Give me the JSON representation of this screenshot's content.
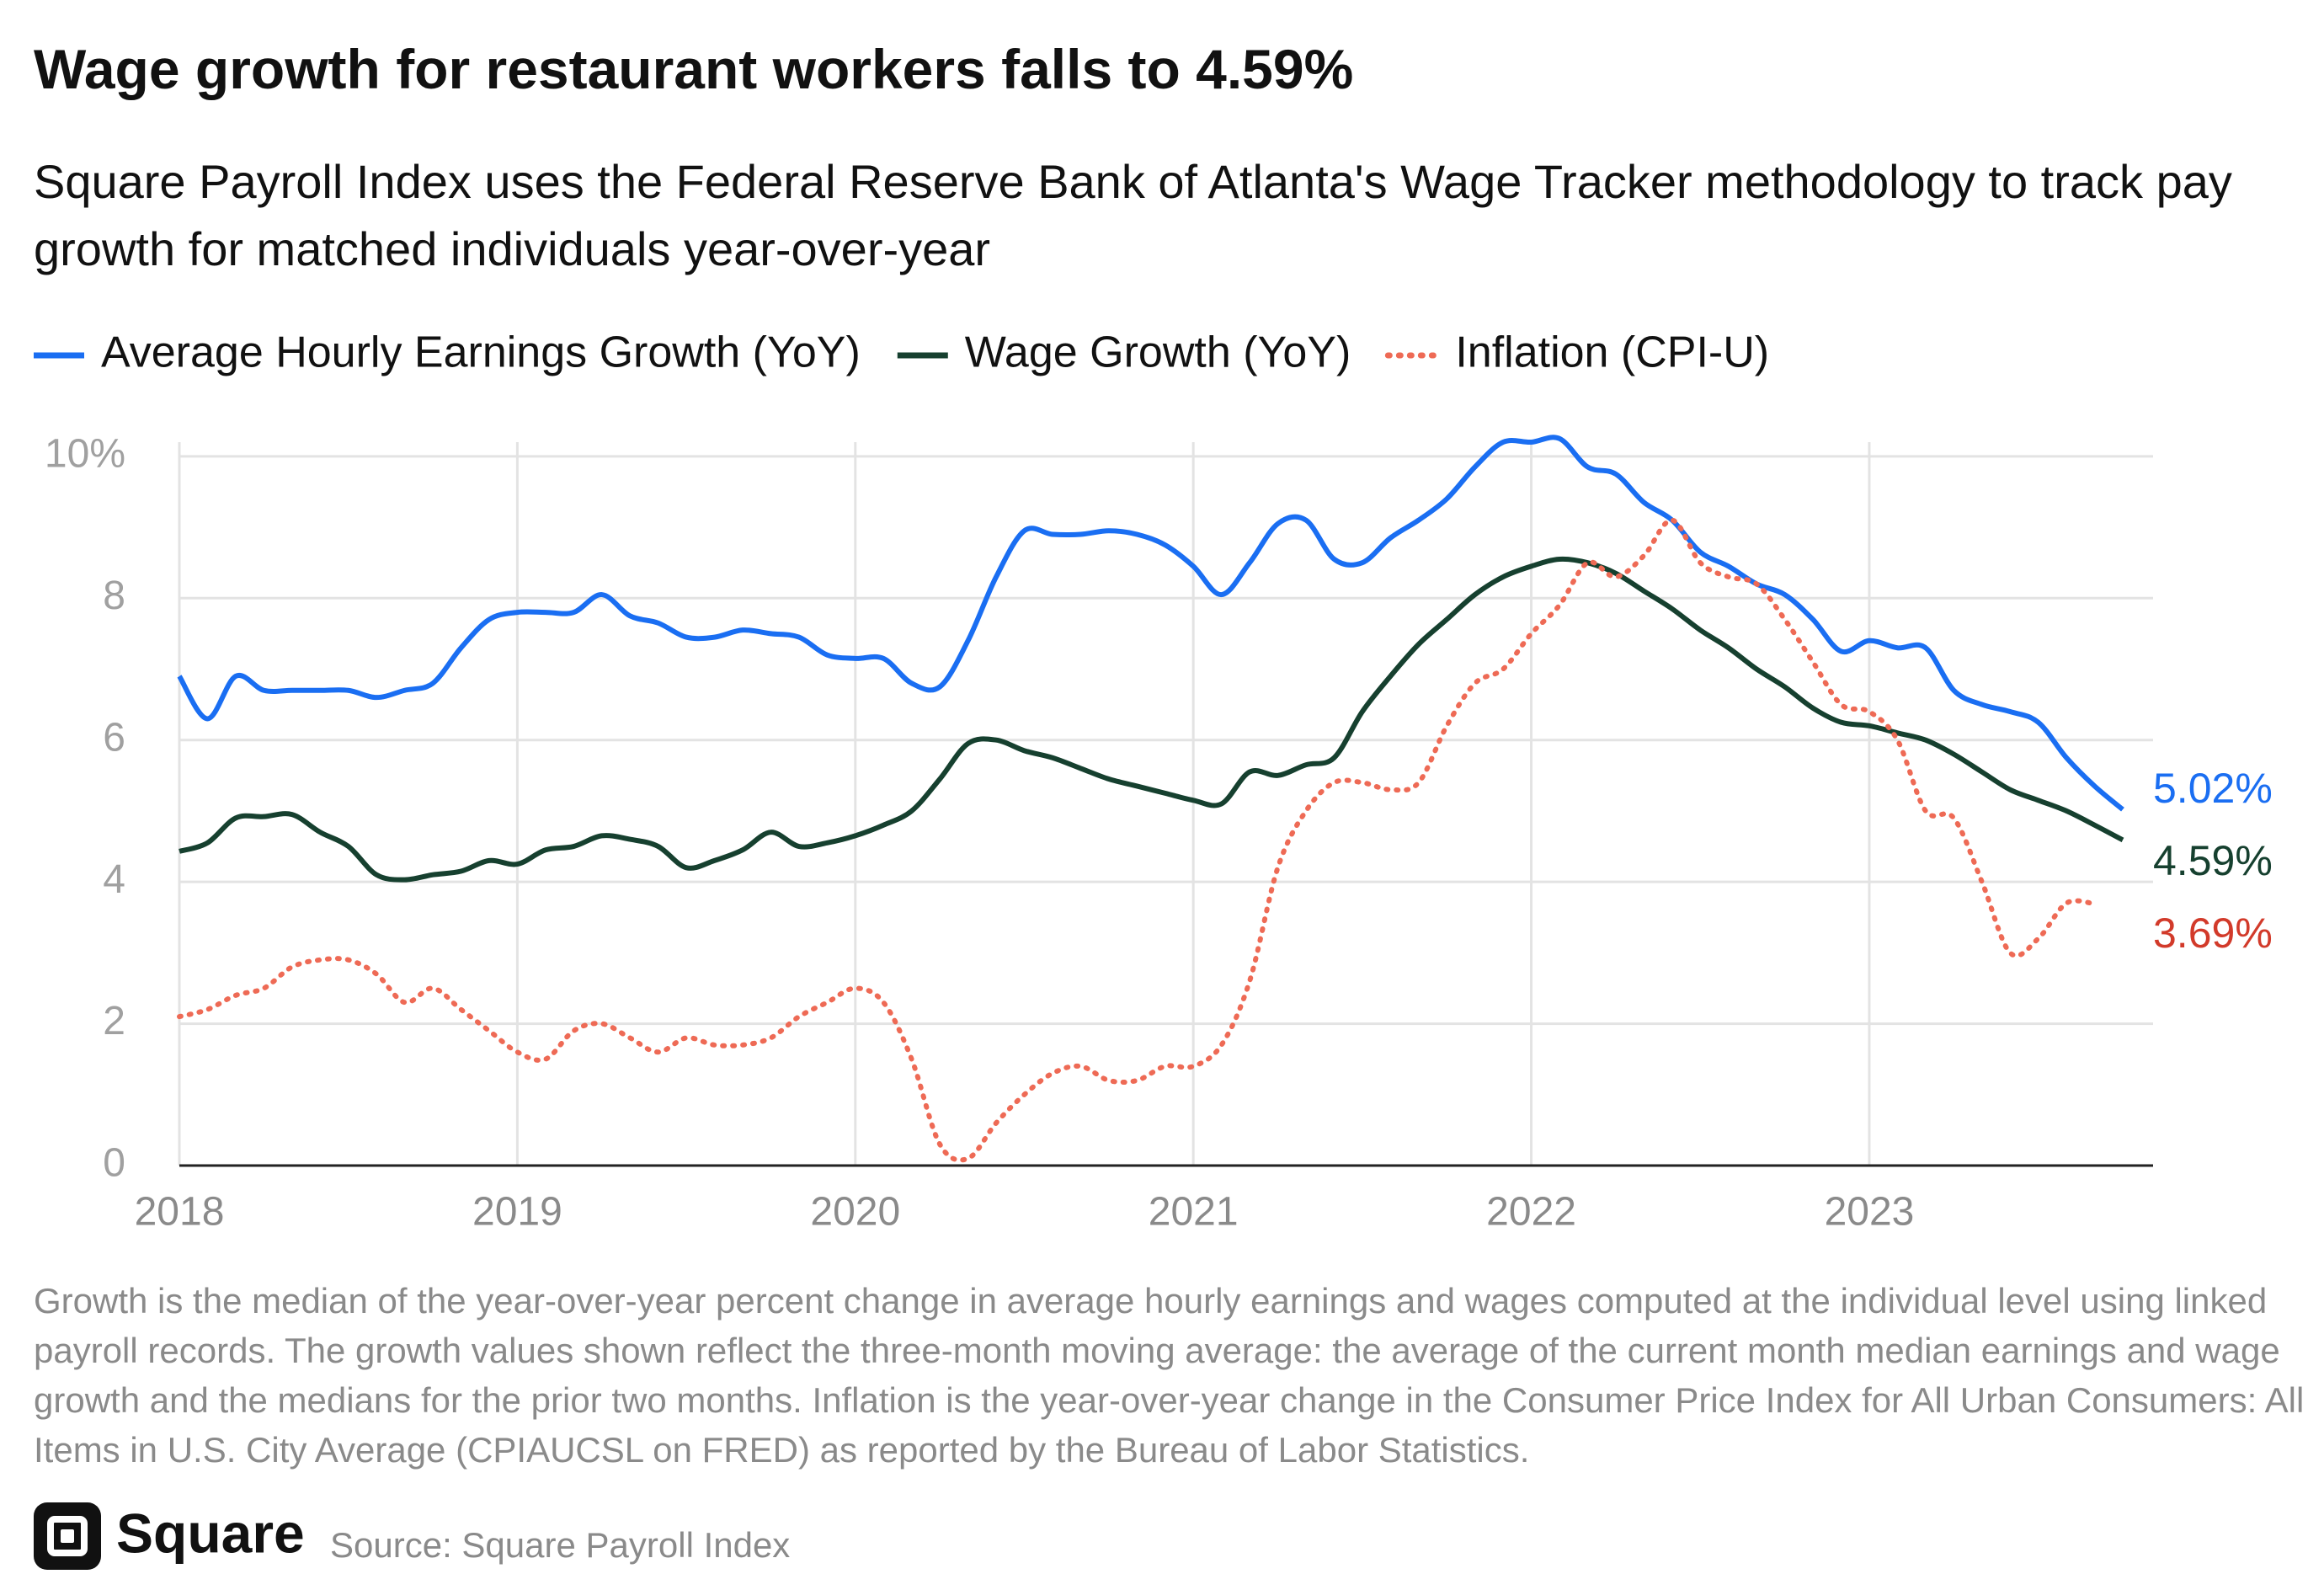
{
  "chart_data": {
    "type": "line",
    "title": "Wage growth for restaurant workers falls to 4.59%",
    "subtitle": "Square Payroll Index uses the Federal Reserve Bank of Atlanta's Wage Tracker methodology to track pay growth for matched individuals year-over-year",
    "note": "Growth is the median of the year-over-year percent change in average hourly earnings and wages computed at the individual level using linked payroll records. The growth values shown reflect the three-month moving average: the average of the current month median earnings and wage growth and the medians for the prior two months. Inflation is the year-over-year change in the Consumer Price Index for All Urban Consumers: All Items in U.S. City Average (CPIAUCSL on FRED) as reported by the Bureau of Labor Statistics.",
    "brand": "Square",
    "source": "Source: Square Payroll Index",
    "categories": [
      "2018",
      null,
      null,
      null,
      null,
      null,
      null,
      null,
      null,
      null,
      null,
      null,
      "2019",
      null,
      null,
      null,
      null,
      null,
      null,
      null,
      null,
      null,
      null,
      null,
      "2020",
      null,
      null,
      null,
      null,
      null,
      null,
      null,
      null,
      null,
      null,
      null,
      "2021",
      null,
      null,
      null,
      null,
      null,
      null,
      null,
      null,
      null,
      null,
      null,
      "2022",
      null,
      null,
      null,
      null,
      null,
      null,
      null,
      null,
      null,
      null,
      null,
      "2023",
      null,
      null,
      null,
      null,
      null,
      null,
      null,
      null,
      null
    ],
    "series": [
      {
        "name": "Average Hourly Earnings Growth (YoY)",
        "color": "#1a6ef2",
        "style": "solid",
        "values": [
          6.9,
          6.3,
          6.9,
          6.7,
          6.7,
          6.7,
          6.7,
          6.6,
          6.7,
          6.8,
          7.3,
          7.7,
          7.8,
          7.8,
          7.8,
          8.05,
          7.75,
          7.65,
          7.45,
          7.45,
          7.55,
          7.5,
          7.45,
          7.2,
          7.15,
          7.15,
          6.8,
          6.75,
          7.4,
          8.3,
          8.95,
          8.9,
          8.9,
          8.95,
          8.9,
          8.75,
          8.45,
          8.05,
          8.5,
          9.05,
          9.1,
          8.55,
          8.5,
          8.85,
          9.1,
          9.4,
          9.85,
          10.2,
          10.2,
          10.25,
          9.85,
          9.75,
          9.35,
          9.1,
          8.65,
          8.45,
          8.2,
          8.05,
          7.7,
          7.25,
          7.4,
          7.3,
          7.3,
          6.7,
          6.5,
          6.4,
          6.25,
          5.75,
          5.35,
          5.02
        ],
        "value_labels": [
          null,
          null,
          null,
          null,
          null,
          null,
          null,
          null,
          null,
          null,
          null,
          null,
          null,
          null,
          null,
          null,
          null,
          null,
          null,
          null,
          null,
          null,
          null,
          null,
          null,
          null,
          null,
          null,
          null,
          null,
          null,
          null,
          null,
          null,
          null,
          null,
          null,
          null,
          null,
          null,
          null,
          null,
          null,
          null,
          null,
          null,
          null,
          null,
          null,
          null,
          null,
          null,
          null,
          null,
          null,
          null,
          null,
          null,
          null,
          null,
          null,
          null,
          null,
          null,
          null,
          null,
          null,
          null,
          null,
          "5.02%"
        ]
      },
      {
        "name": "Wage Growth (YoY)",
        "color": "#16402f",
        "style": "solid",
        "values": [
          4.43,
          4.55,
          4.9,
          4.92,
          4.95,
          4.7,
          4.5,
          4.1,
          4.03,
          4.1,
          4.15,
          4.3,
          4.25,
          4.45,
          4.5,
          4.65,
          4.6,
          4.5,
          4.2,
          4.3,
          4.45,
          4.7,
          4.5,
          4.55,
          4.65,
          4.8,
          5.0,
          5.45,
          5.95,
          6.0,
          5.85,
          5.75,
          5.6,
          5.45,
          5.35,
          5.25,
          5.15,
          5.1,
          5.55,
          5.5,
          5.65,
          5.75,
          6.4,
          6.9,
          7.35,
          7.7,
          8.05,
          8.3,
          8.45,
          8.55,
          8.5,
          8.35,
          8.1,
          7.85,
          7.55,
          7.3,
          7.0,
          6.75,
          6.45,
          6.25,
          6.2,
          6.1,
          6.0,
          5.8,
          5.55,
          5.3,
          5.15,
          5.0,
          4.8,
          4.59
        ],
        "value_labels": [
          null,
          null,
          null,
          null,
          null,
          null,
          null,
          null,
          null,
          null,
          null,
          null,
          null,
          null,
          null,
          null,
          null,
          null,
          null,
          null,
          null,
          null,
          null,
          null,
          null,
          null,
          null,
          null,
          null,
          null,
          null,
          null,
          null,
          null,
          null,
          null,
          null,
          null,
          null,
          null,
          null,
          null,
          null,
          null,
          null,
          null,
          null,
          null,
          null,
          null,
          null,
          null,
          null,
          null,
          null,
          null,
          null,
          null,
          null,
          null,
          null,
          null,
          null,
          null,
          null,
          null,
          null,
          null,
          null,
          "4.59%"
        ]
      },
      {
        "name": "Inflation (CPI-U)",
        "color": "#ee6a55",
        "label_color": "#d23a2a",
        "style": "dotted",
        "values": [
          2.1,
          2.2,
          2.4,
          2.5,
          2.8,
          2.9,
          2.9,
          2.7,
          2.3,
          2.5,
          2.2,
          1.9,
          1.6,
          1.5,
          1.9,
          2.0,
          1.8,
          1.6,
          1.8,
          1.7,
          1.7,
          1.8,
          2.1,
          2.3,
          2.5,
          2.3,
          1.5,
          0.3,
          0.1,
          0.6,
          1.0,
          1.3,
          1.4,
          1.2,
          1.2,
          1.4,
          1.4,
          1.7,
          2.6,
          4.2,
          5.0,
          5.4,
          5.4,
          5.3,
          5.4,
          6.2,
          6.8,
          7.0,
          7.5,
          7.9,
          8.5,
          8.3,
          8.6,
          9.1,
          8.5,
          8.3,
          8.2,
          7.7,
          7.1,
          6.5,
          6.4,
          6.0,
          5.0,
          4.9,
          4.0,
          3.0,
          3.2,
          3.7,
          3.69,
          null
        ],
        "value_labels": [
          null,
          null,
          null,
          null,
          null,
          null,
          null,
          null,
          null,
          null,
          null,
          null,
          null,
          null,
          null,
          null,
          null,
          null,
          null,
          null,
          null,
          null,
          null,
          null,
          null,
          null,
          null,
          null,
          null,
          null,
          null,
          null,
          null,
          null,
          null,
          null,
          null,
          null,
          null,
          null,
          null,
          null,
          null,
          null,
          null,
          null,
          null,
          null,
          null,
          null,
          null,
          null,
          null,
          null,
          null,
          null,
          null,
          null,
          null,
          null,
          null,
          null,
          null,
          null,
          null,
          null,
          null,
          null,
          "3.69%",
          null
        ]
      }
    ],
    "ylim": [
      0,
      10.2
    ],
    "yticks": [
      0,
      2,
      4,
      6,
      8,
      {
        "value": 10,
        "label": "10%"
      }
    ],
    "grid": true
  }
}
